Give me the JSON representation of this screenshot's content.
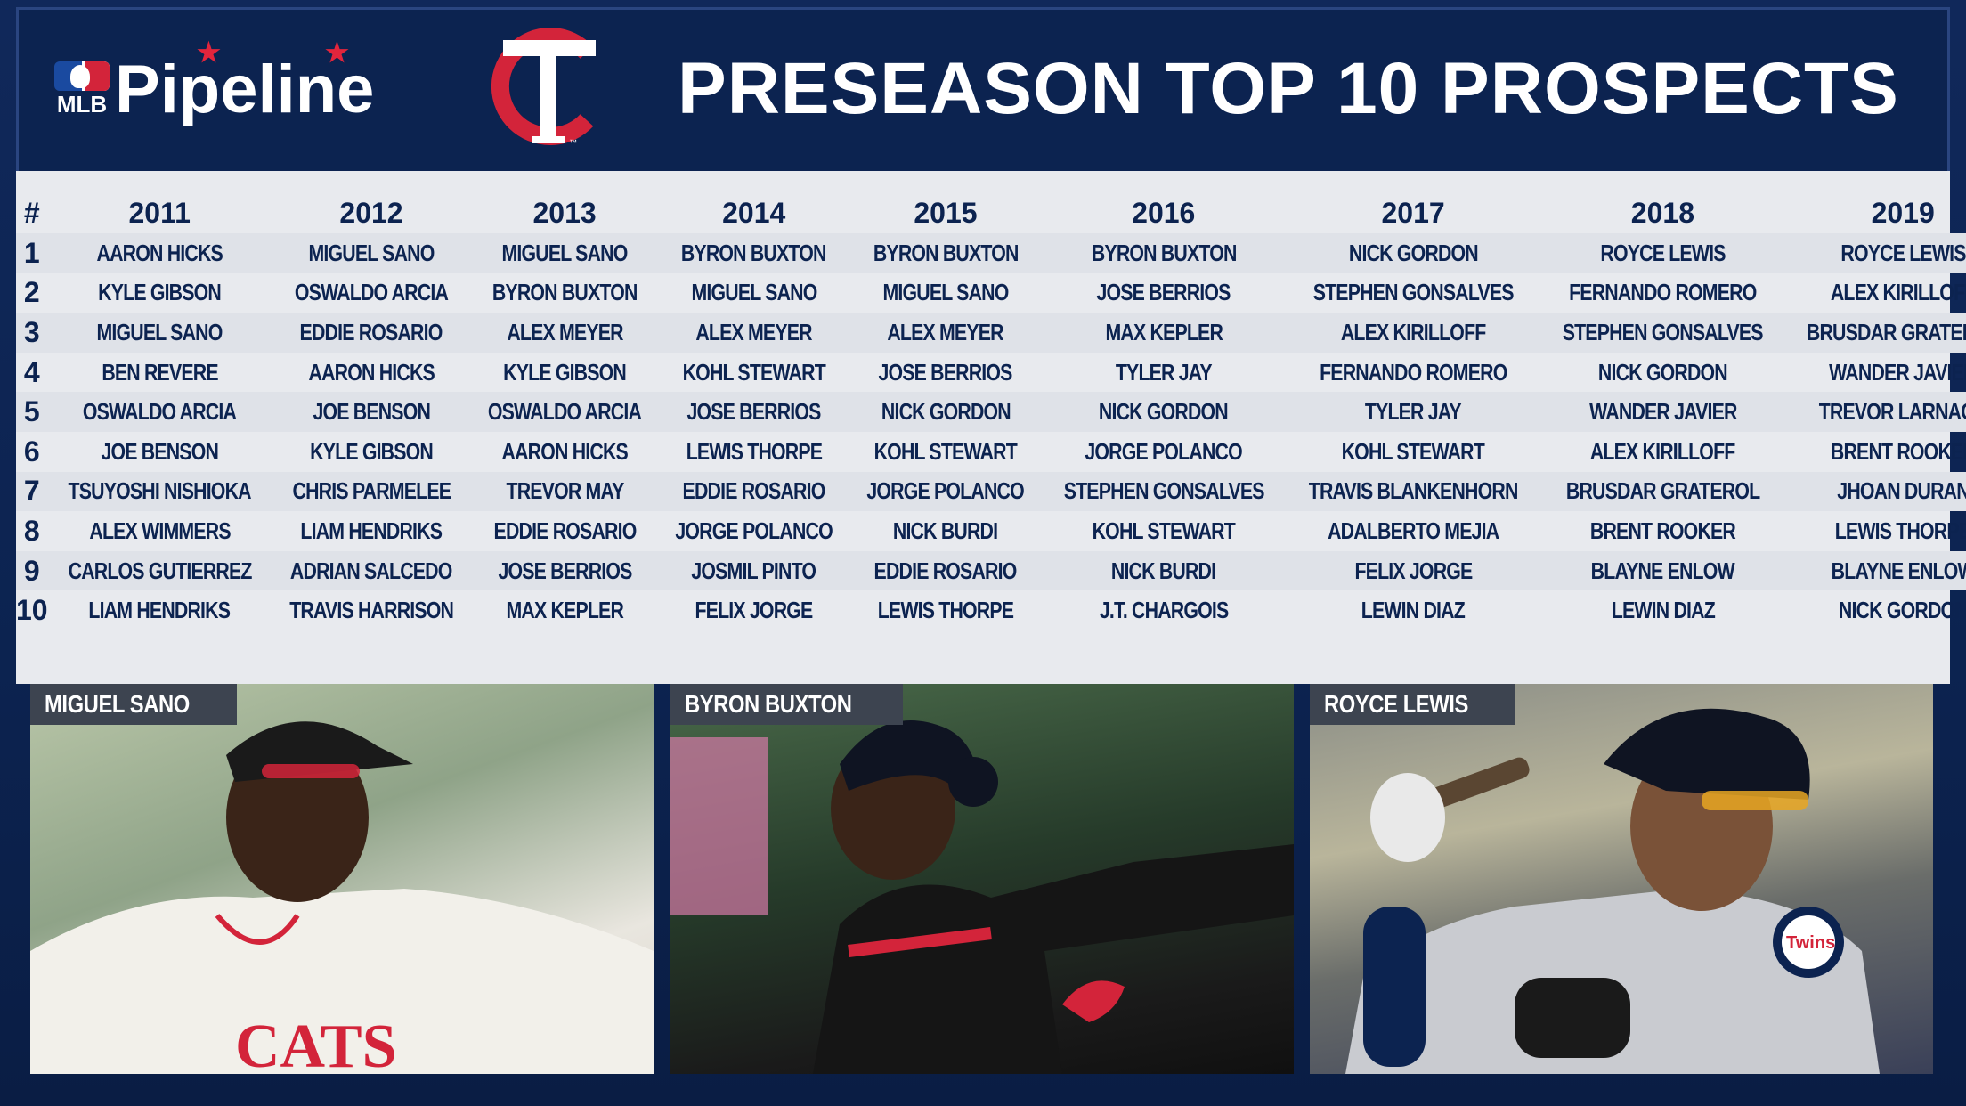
{
  "header": {
    "brand_mlb": "MLB",
    "brand_name": "Pipeline",
    "title": "PRESEASON TOP 10 PROSPECTS"
  },
  "colors": {
    "navy": "#0c2350",
    "red": "#d3243a",
    "panel": "#e8eaee"
  },
  "table": {
    "rank_header": "#",
    "years": [
      "2011",
      "2012",
      "2013",
      "2014",
      "2015",
      "2016",
      "2017",
      "2018",
      "2019"
    ],
    "rows": [
      {
        "rank": "1",
        "players": [
          "AARON HICKS",
          "MIGUEL SANO",
          "MIGUEL SANO",
          "BYRON BUXTON",
          "BYRON BUXTON",
          "BYRON BUXTON",
          "NICK GORDON",
          "ROYCE LEWIS",
          "ROYCE LEWIS"
        ]
      },
      {
        "rank": "2",
        "players": [
          "KYLE GIBSON",
          "OSWALDO ARCIA",
          "BYRON BUXTON",
          "MIGUEL SANO",
          "MIGUEL SANO",
          "JOSE BERRIOS",
          "STEPHEN GONSALVES",
          "FERNANDO ROMERO",
          "ALEX KIRILLOFF"
        ]
      },
      {
        "rank": "3",
        "players": [
          "MIGUEL SANO",
          "EDDIE ROSARIO",
          "ALEX MEYER",
          "ALEX MEYER",
          "ALEX MEYER",
          "MAX KEPLER",
          "ALEX KIRILLOFF",
          "STEPHEN GONSALVES",
          "BRUSDAR GRATEROL"
        ]
      },
      {
        "rank": "4",
        "players": [
          "BEN REVERE",
          "AARON HICKS",
          "KYLE GIBSON",
          "KOHL STEWART",
          "JOSE BERRIOS",
          "TYLER JAY",
          "FERNANDO ROMERO",
          "NICK GORDON",
          "WANDER JAVIER"
        ]
      },
      {
        "rank": "5",
        "players": [
          "OSWALDO ARCIA",
          "JOE BENSON",
          "OSWALDO ARCIA",
          "JOSE BERRIOS",
          "NICK GORDON",
          "NICK GORDON",
          "TYLER JAY",
          "WANDER JAVIER",
          "TREVOR LARNACH"
        ]
      },
      {
        "rank": "6",
        "players": [
          "JOE BENSON",
          "KYLE GIBSON",
          "AARON HICKS",
          "LEWIS THORPE",
          "KOHL STEWART",
          "JORGE POLANCO",
          "KOHL STEWART",
          "ALEX KIRILLOFF",
          "BRENT ROOKER"
        ]
      },
      {
        "rank": "7",
        "players": [
          "TSUYOSHI NISHIOKA",
          "CHRIS PARMELEE",
          "TREVOR MAY",
          "EDDIE ROSARIO",
          "JORGE POLANCO",
          "STEPHEN GONSALVES",
          "TRAVIS BLANKENHORN",
          "BRUSDAR GRATEROL",
          "JHOAN DURAN"
        ]
      },
      {
        "rank": "8",
        "players": [
          "ALEX WIMMERS",
          "LIAM HENDRIKS",
          "EDDIE ROSARIO",
          "JORGE POLANCO",
          "NICK BURDI",
          "KOHL STEWART",
          "ADALBERTO MEJIA",
          "BRENT ROOKER",
          "LEWIS THORPE"
        ]
      },
      {
        "rank": "9",
        "players": [
          "CARLOS GUTIERREZ",
          "ADRIAN SALCEDO",
          "JOSE BERRIOS",
          "JOSMIL PINTO",
          "EDDIE ROSARIO",
          "NICK BURDI",
          "FELIX JORGE",
          "BLAYNE ENLOW",
          "BLAYNE ENLOW"
        ]
      },
      {
        "rank": "10",
        "players": [
          "LIAM HENDRIKS",
          "TRAVIS HARRISON",
          "MAX KEPLER",
          "FELIX JORGE",
          "LEWIS THORPE",
          "J.T. CHARGOIS",
          "LEWIN DIAZ",
          "LEWIN DIAZ",
          "NICK GORDON"
        ]
      }
    ]
  },
  "photos": [
    {
      "caption": "MIGUEL SANO"
    },
    {
      "caption": "BYRON BUXTON"
    },
    {
      "caption": "ROYCE LEWIS"
    }
  ]
}
